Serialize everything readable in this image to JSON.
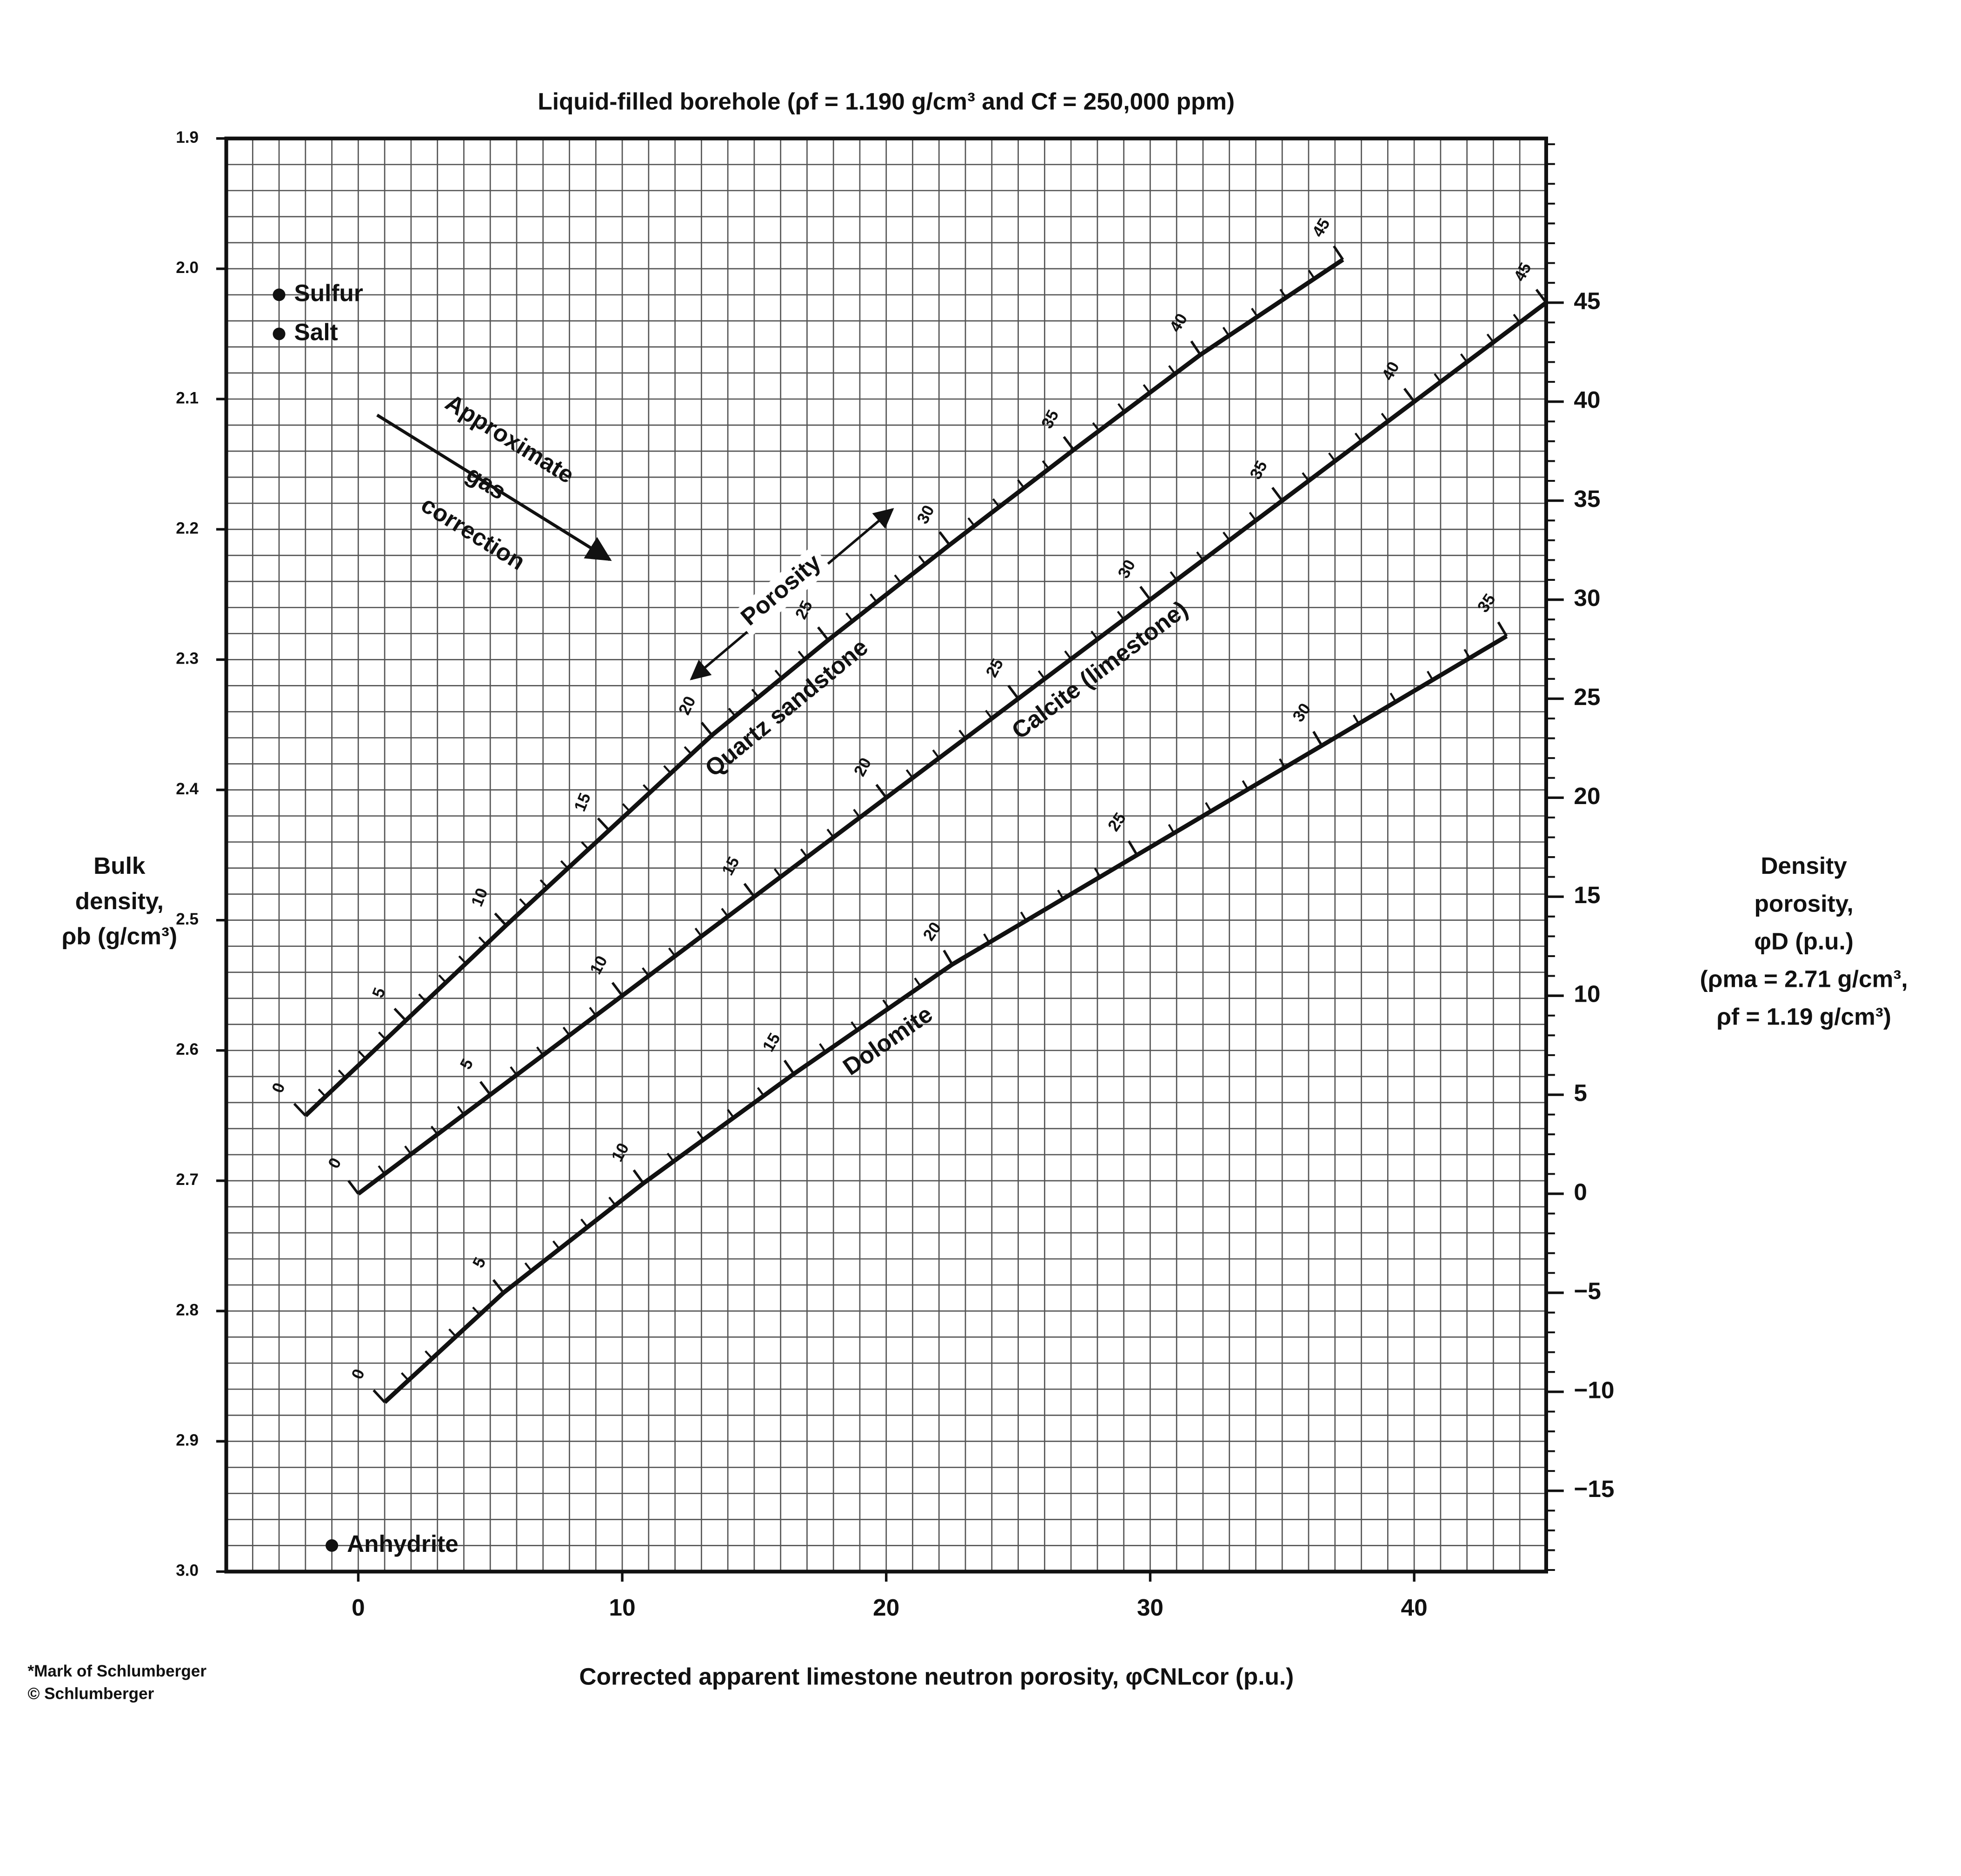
{
  "chart_data": {
    "type": "crossplot",
    "title": "Liquid-filled borehole (ρf = 1.190 g/cm³ and Cf = 250,000 ppm)",
    "x_label": "Corrected apparent limestone neutron porosity, φCNLcor (p.u.)",
    "y_label": [
      "Bulk",
      "density,",
      "ρb (g/cm³)"
    ],
    "y2_label": [
      "Density",
      "porosity,",
      "φD (p.u.)",
      "(ρma = 2.71 g/cm³,",
      "ρf = 1.19 g/cm³)"
    ],
    "xlim": [
      -5,
      45
    ],
    "xticks": [
      0,
      10,
      20,
      30,
      40
    ],
    "ylim": [
      3.0,
      1.9
    ],
    "yticks": [
      1.9,
      {
        "value": 2,
        "label": "2.0"
      },
      2.1,
      2.2,
      2.3,
      2.4,
      2.5,
      2.6,
      2.7,
      2.8,
      2.9,
      {
        "value": 3,
        "label": "3.0"
      }
    ],
    "y2lim": [
      -19.08,
      53.29
    ],
    "y2ticks": [
      {
        "value": -15,
        "label": "−15"
      },
      {
        "value": -10,
        "label": "−10"
      },
      {
        "value": -5,
        "label": "−5"
      },
      0,
      5,
      10,
      15,
      20,
      25,
      30,
      35,
      40,
      45
    ],
    "grid": true,
    "x_grid_step": 1,
    "y_grid_step": 0.02,
    "series": [
      {
        "name": "Quartz sandstone",
        "color": "#111111",
        "porosity": [
          0,
          5,
          10,
          15,
          20,
          25,
          30,
          35,
          40,
          45
        ],
        "x": [
          -2,
          1.8,
          5.6,
          9.5,
          13.4,
          17.8,
          22.4,
          27.1,
          31.9,
          37.3
        ],
        "y": [
          2.65,
          2.577,
          2.504,
          2.431,
          2.358,
          2.285,
          2.212,
          2.139,
          2.066,
          1.993
        ]
      },
      {
        "name": "Calcite (limestone)",
        "color": "#111111",
        "porosity": [
          0,
          5,
          10,
          15,
          20,
          25,
          30,
          35,
          40,
          45
        ],
        "x": [
          0,
          5,
          10,
          15,
          20,
          25,
          30,
          35,
          40,
          45
        ],
        "y": [
          2.71,
          2.634,
          2.558,
          2.482,
          2.406,
          2.33,
          2.254,
          2.178,
          2.102,
          2.026
        ]
      },
      {
        "name": "Dolomite",
        "color": "#111111",
        "porosity": [
          0,
          5,
          10,
          15,
          20,
          25,
          30,
          35
        ],
        "x": [
          1,
          5.5,
          10.8,
          16.5,
          22.5,
          29.5,
          36.5,
          43.5
        ],
        "y": [
          2.87,
          2.786,
          2.702,
          2.618,
          2.534,
          2.45,
          2.366,
          2.282
        ]
      }
    ],
    "points": [
      {
        "name": "Sulfur",
        "x": -3,
        "y": 2.02
      },
      {
        "name": "Salt",
        "x": -3,
        "y": 2.05
      },
      {
        "name": "Anhydrite",
        "x": -1,
        "y": 2.98
      }
    ],
    "gas_correction": [
      "Approximate",
      "gas",
      "correction"
    ],
    "porosity_arrow": "Porosity",
    "footnote": [
      "*Mark of Schlumberger",
      "© Schlumberger"
    ]
  }
}
